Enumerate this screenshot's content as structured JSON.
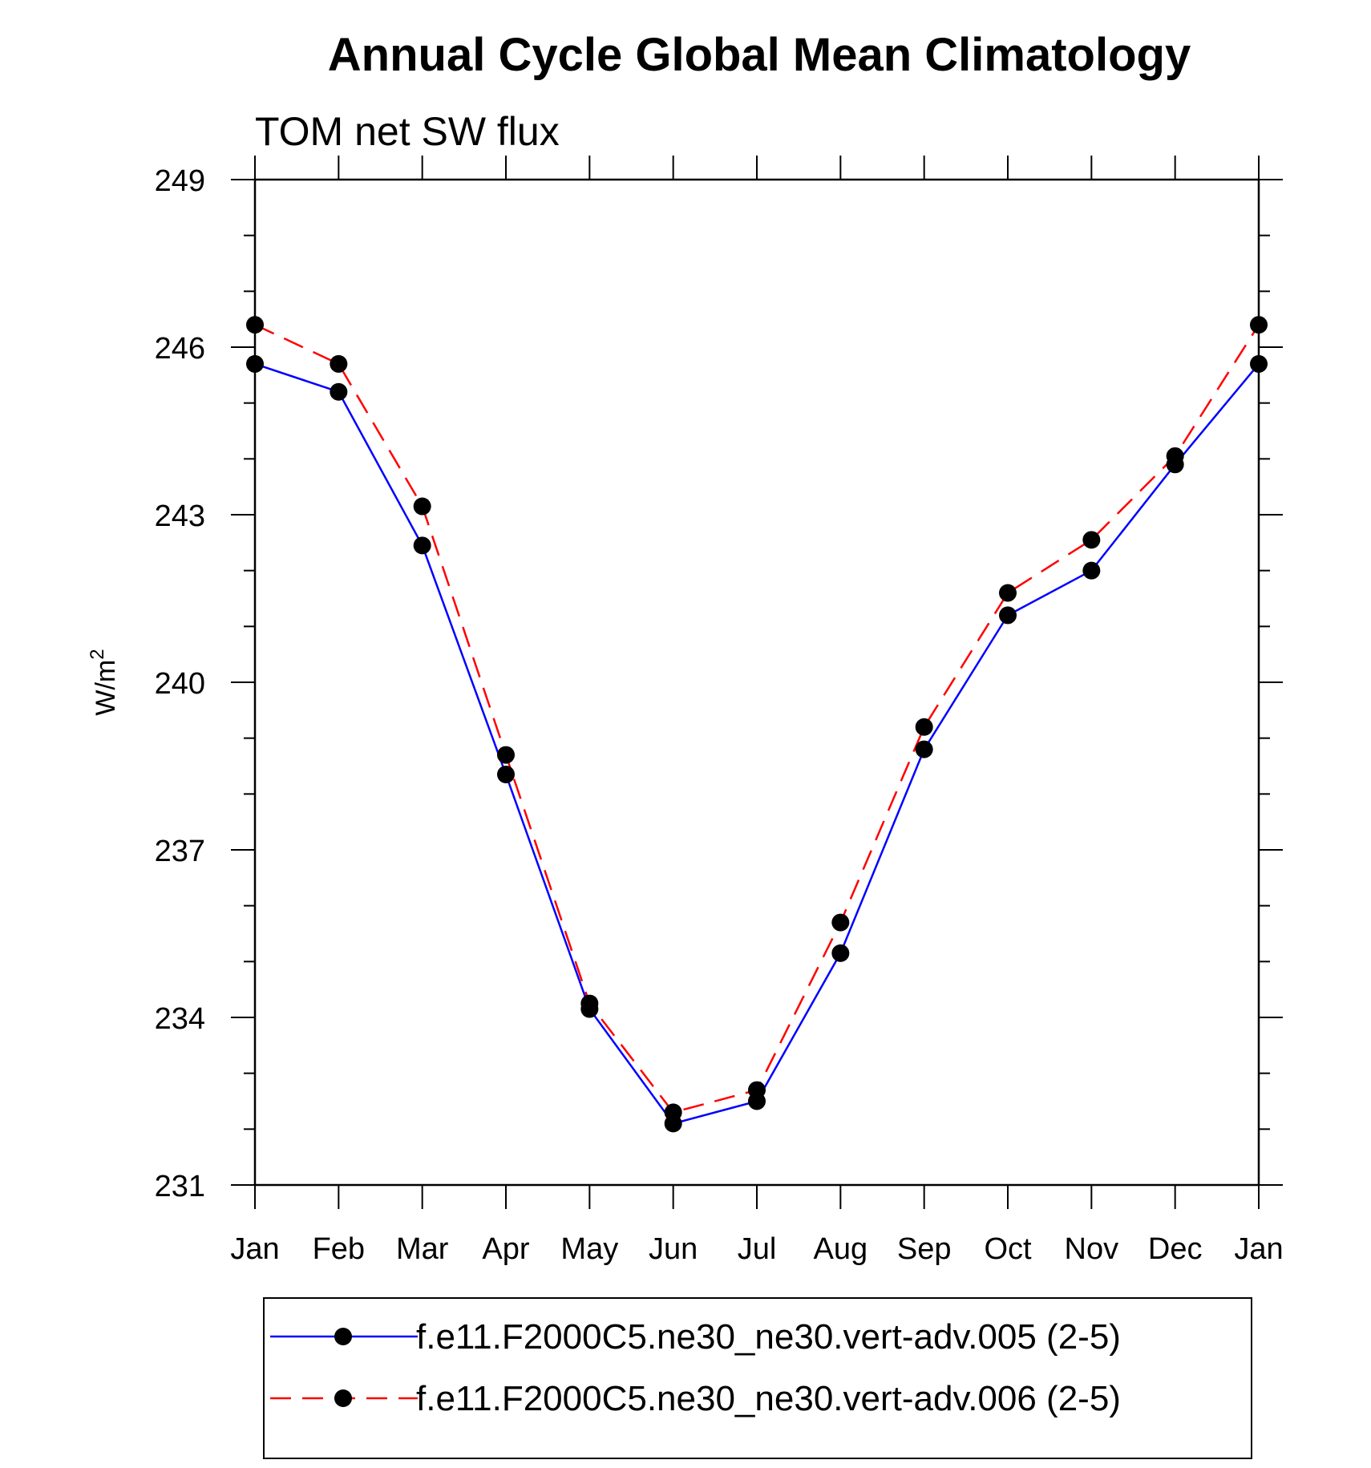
{
  "chart_data": {
    "type": "line",
    "title": "Annual Cycle Global Mean Climatology",
    "subtitle": "TOM net SW flux",
    "ylabel": "W/m",
    "ylabel_superscript": "2",
    "xlabel": "",
    "categories": [
      "Jan",
      "Feb",
      "Mar",
      "Apr",
      "May",
      "Jun",
      "Jul",
      "Aug",
      "Sep",
      "Oct",
      "Nov",
      "Dec",
      "Jan"
    ],
    "ylim": [
      231,
      249
    ],
    "yticks": [
      231,
      234,
      237,
      240,
      243,
      246,
      249
    ],
    "grid": false,
    "legend_position": "bottom",
    "series": [
      {
        "name": "f.e11.F2000C5.ne30_ne30.vert-adv.005 (2-5)",
        "color": "#0000ff",
        "dash": "solid",
        "values": [
          245.7,
          245.2,
          242.45,
          238.35,
          234.15,
          232.1,
          232.5,
          235.15,
          238.8,
          241.2,
          242.0,
          243.9,
          245.7
        ]
      },
      {
        "name": "f.e11.F2000C5.ne30_ne30.vert-adv.006 (2-5)",
        "color": "#ff0000",
        "dash": "dashed",
        "values": [
          246.4,
          245.7,
          243.15,
          238.7,
          234.25,
          232.3,
          232.7,
          235.7,
          239.2,
          241.6,
          242.55,
          244.05,
          246.4
        ]
      }
    ]
  }
}
